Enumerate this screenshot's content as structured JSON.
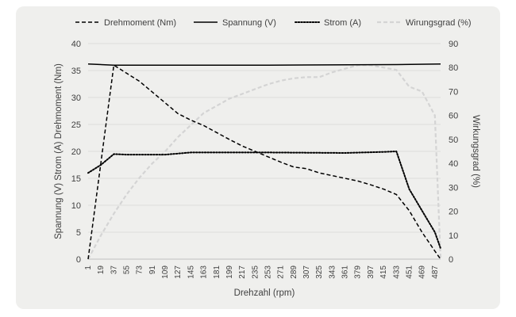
{
  "chart_data": {
    "type": "line",
    "x_label": "Drehzahl (rpm)",
    "y_label_left": "Spannung (V) Strom (A) Drehmoment (Nm)",
    "y_label_right": "Wirkungsgrad (%)",
    "y_left_range": [
      0,
      40
    ],
    "y_left_ticks": [
      0,
      5,
      10,
      15,
      20,
      25,
      30,
      35,
      40
    ],
    "y_right_range": [
      0,
      90
    ],
    "y_right_ticks": [
      0,
      10,
      20,
      30,
      40,
      50,
      60,
      70,
      80,
      90
    ],
    "x_range": [
      1,
      487
    ],
    "x_tick_labels": [
      "1",
      "19",
      "37",
      "55",
      "73",
      "91",
      "109",
      "127",
      "145",
      "163",
      "181",
      "199",
      "217",
      "235",
      "253",
      "271",
      "289",
      "307",
      "325",
      "343",
      "361",
      "379",
      "397",
      "415",
      "433",
      "451",
      "469",
      "487"
    ],
    "grid": "horizontal",
    "legend_position": "top",
    "series": [
      {
        "name": "Drehmoment (Nm)",
        "axis": "left",
        "style": "dashed",
        "color": "#000000",
        "points": [
          [
            1,
            0
          ],
          [
            37,
            36
          ],
          [
            55,
            34.5
          ],
          [
            73,
            33
          ],
          [
            91,
            31
          ],
          [
            109,
            29
          ],
          [
            127,
            27
          ],
          [
            145,
            25.8
          ],
          [
            163,
            24.8
          ],
          [
            181,
            23.5
          ],
          [
            199,
            22.2
          ],
          [
            217,
            21
          ],
          [
            235,
            20
          ],
          [
            253,
            19
          ],
          [
            271,
            18
          ],
          [
            289,
            17.1
          ],
          [
            307,
            16.8
          ],
          [
            325,
            16
          ],
          [
            343,
            15.5
          ],
          [
            361,
            15
          ],
          [
            379,
            14.5
          ],
          [
            397,
            13.8
          ],
          [
            415,
            13
          ],
          [
            433,
            12
          ],
          [
            451,
            9
          ],
          [
            469,
            5
          ],
          [
            487,
            1.5
          ],
          [
            495,
            0
          ]
        ]
      },
      {
        "name": "Spannung (V)",
        "axis": "left",
        "style": "solid",
        "color": "#000000",
        "points": [
          [
            1,
            36.2
          ],
          [
            37,
            36
          ],
          [
            253,
            36
          ],
          [
            433,
            36.1
          ],
          [
            495,
            36.2
          ]
        ]
      },
      {
        "name": "Strom (A)",
        "axis": "left",
        "style": "dotted",
        "color": "#000000",
        "points": [
          [
            1,
            16
          ],
          [
            19,
            17.5
          ],
          [
            37,
            19.5
          ],
          [
            55,
            19.4
          ],
          [
            109,
            19.4
          ],
          [
            145,
            19.8
          ],
          [
            253,
            19.8
          ],
          [
            361,
            19.7
          ],
          [
            415,
            19.9
          ],
          [
            433,
            20
          ],
          [
            451,
            13
          ],
          [
            469,
            9
          ],
          [
            487,
            5
          ],
          [
            495,
            2
          ]
        ]
      },
      {
        "name": "Wirungsgrad (%)",
        "axis": "right",
        "style": "dashed",
        "color": "#d4d4d4",
        "points": [
          [
            1,
            0
          ],
          [
            19,
            10
          ],
          [
            37,
            19
          ],
          [
            55,
            27
          ],
          [
            73,
            34
          ],
          [
            91,
            40
          ],
          [
            109,
            45
          ],
          [
            127,
            51
          ],
          [
            145,
            56
          ],
          [
            163,
            61
          ],
          [
            181,
            64
          ],
          [
            199,
            67
          ],
          [
            217,
            69
          ],
          [
            235,
            71
          ],
          [
            253,
            73
          ],
          [
            271,
            74.5
          ],
          [
            289,
            75.5
          ],
          [
            307,
            76
          ],
          [
            325,
            76
          ],
          [
            343,
            78
          ],
          [
            361,
            79.5
          ],
          [
            379,
            81
          ],
          [
            397,
            81
          ],
          [
            415,
            80
          ],
          [
            433,
            79
          ],
          [
            451,
            72
          ],
          [
            469,
            70
          ],
          [
            487,
            60
          ],
          [
            495,
            0
          ]
        ]
      }
    ]
  }
}
